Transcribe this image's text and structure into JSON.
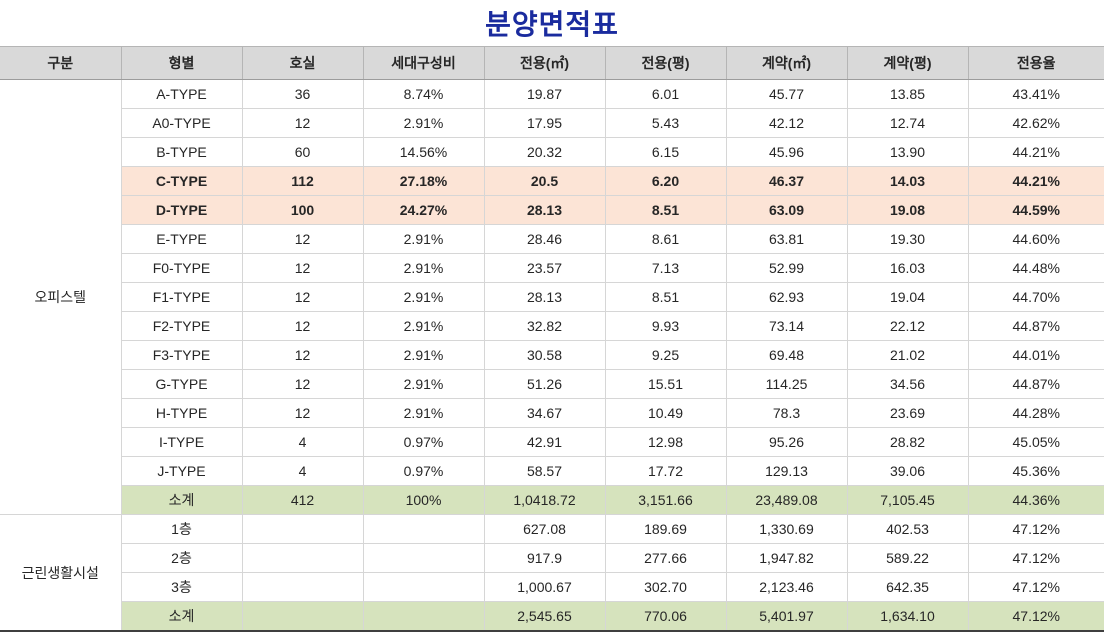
{
  "title": "분양면적표",
  "colors": {
    "title_text": "#1a2b9e",
    "header_bg": "#d9d9d9",
    "highlight_row_bg": "#fce4d6",
    "subtotal_row_bg": "#d6e3bd",
    "grid_border": "#d6d6d6",
    "table_bottom_border": "#3f3f3f"
  },
  "chart_data": {
    "type": "table",
    "title": "분양면적표",
    "headers": [
      "구분",
      "형별",
      "호실",
      "세대구성비",
      "전용(㎡)",
      "전용(평)",
      "계약(㎡)",
      "계약(평)",
      "전용율"
    ],
    "sections": [
      {
        "group_label": "오피스텔",
        "rows": [
          {
            "style": "normal",
            "cells": [
              "A-TYPE",
              "36",
              "8.74%",
              "19.87",
              "6.01",
              "45.77",
              "13.85",
              "43.41%"
            ]
          },
          {
            "style": "normal",
            "cells": [
              "A0-TYPE",
              "12",
              "2.91%",
              "17.95",
              "5.43",
              "42.12",
              "12.74",
              "42.62%"
            ]
          },
          {
            "style": "normal",
            "cells": [
              "B-TYPE",
              "60",
              "14.56%",
              "20.32",
              "6.15",
              "45.96",
              "13.90",
              "44.21%"
            ]
          },
          {
            "style": "highlight",
            "cells": [
              "C-TYPE",
              "112",
              "27.18%",
              "20.5",
              "6.20",
              "46.37",
              "14.03",
              "44.21%"
            ]
          },
          {
            "style": "highlight",
            "cells": [
              "D-TYPE",
              "100",
              "24.27%",
              "28.13",
              "8.51",
              "63.09",
              "19.08",
              "44.59%"
            ]
          },
          {
            "style": "normal",
            "cells": [
              "E-TYPE",
              "12",
              "2.91%",
              "28.46",
              "8.61",
              "63.81",
              "19.30",
              "44.60%"
            ]
          },
          {
            "style": "normal",
            "cells": [
              "F0-TYPE",
              "12",
              "2.91%",
              "23.57",
              "7.13",
              "52.99",
              "16.03",
              "44.48%"
            ]
          },
          {
            "style": "normal",
            "cells": [
              "F1-TYPE",
              "12",
              "2.91%",
              "28.13",
              "8.51",
              "62.93",
              "19.04",
              "44.70%"
            ]
          },
          {
            "style": "normal",
            "cells": [
              "F2-TYPE",
              "12",
              "2.91%",
              "32.82",
              "9.93",
              "73.14",
              "22.12",
              "44.87%"
            ]
          },
          {
            "style": "normal",
            "cells": [
              "F3-TYPE",
              "12",
              "2.91%",
              "30.58",
              "9.25",
              "69.48",
              "21.02",
              "44.01%"
            ]
          },
          {
            "style": "normal",
            "cells": [
              "G-TYPE",
              "12",
              "2.91%",
              "51.26",
              "15.51",
              "114.25",
              "34.56",
              "44.87%"
            ]
          },
          {
            "style": "normal",
            "cells": [
              "H-TYPE",
              "12",
              "2.91%",
              "34.67",
              "10.49",
              "78.3",
              "23.69",
              "44.28%"
            ]
          },
          {
            "style": "normal",
            "cells": [
              "I-TYPE",
              "4",
              "0.97%",
              "42.91",
              "12.98",
              "95.26",
              "28.82",
              "45.05%"
            ]
          },
          {
            "style": "normal",
            "cells": [
              "J-TYPE",
              "4",
              "0.97%",
              "58.57",
              "17.72",
              "129.13",
              "39.06",
              "45.36%"
            ]
          },
          {
            "style": "subtotal",
            "cells": [
              "소계",
              "412",
              "100%",
              "1,0418.72",
              "3,151.66",
              "23,489.08",
              "7,105.45",
              "44.36%"
            ]
          }
        ]
      },
      {
        "group_label": "근린생활시설",
        "rows": [
          {
            "style": "normal",
            "cells": [
              "1층",
              "",
              "",
              "627.08",
              "189.69",
              "1,330.69",
              "402.53",
              "47.12%"
            ]
          },
          {
            "style": "normal",
            "cells": [
              "2층",
              "",
              "",
              "917.9",
              "277.66",
              "1,947.82",
              "589.22",
              "47.12%"
            ]
          },
          {
            "style": "normal",
            "cells": [
              "3층",
              "",
              "",
              "1,000.67",
              "302.70",
              "2,123.46",
              "642.35",
              "47.12%"
            ]
          },
          {
            "style": "subtotal",
            "cells": [
              "소계",
              "",
              "",
              "2,545.65",
              "770.06",
              "5,401.97",
              "1,634.10",
              "47.12%"
            ]
          }
        ]
      }
    ]
  }
}
